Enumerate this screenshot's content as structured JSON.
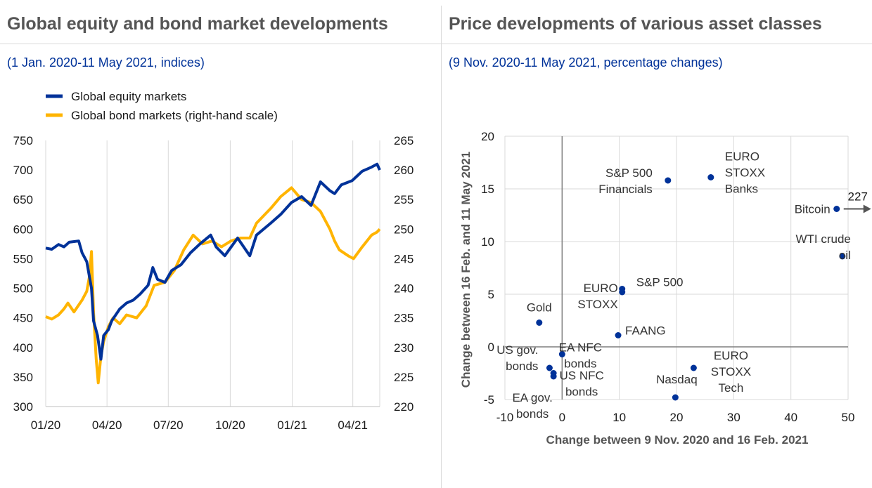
{
  "colors": {
    "equity": "#003299",
    "bond": "#FFB400",
    "grid": "#d9d9d9",
    "dot": "#003299",
    "text": "#1a1a1a",
    "title": "#555555",
    "subtitle": "#003299"
  },
  "left": {
    "title": "Global equity and bond market developments",
    "subtitle": "(1 Jan. 2020-11 May 2021, indices)"
  },
  "right": {
    "title": "Price developments of various asset classes",
    "subtitle": "(9 Nov. 2020-11 May 2021, percentage changes)"
  },
  "chart_data": [
    {
      "type": "line",
      "x_range": [
        "2020-01-01",
        "2021-05-11"
      ],
      "x_ticks": [
        {
          "date": "2020-01-01",
          "label": "01/20"
        },
        {
          "date": "2020-04-01",
          "label": "04/20"
        },
        {
          "date": "2020-07-01",
          "label": "07/20"
        },
        {
          "date": "2020-10-01",
          "label": "10/20"
        },
        {
          "date": "2021-01-01",
          "label": "01/21"
        },
        {
          "date": "2021-04-01",
          "label": "04/21"
        }
      ],
      "ylim_left": [
        300,
        750
      ],
      "yticks_left": [
        "750",
        "700",
        "650",
        "600",
        "550",
        "500",
        "450",
        "400",
        "350",
        "300"
      ],
      "ylim_right": [
        220,
        265
      ],
      "yticks_right": [
        "265",
        "260",
        "255",
        "250",
        "245",
        "240",
        "235",
        "230",
        "225",
        "220"
      ],
      "grid": "vertical at x ticks",
      "legend_placement": "top-left",
      "series": [
        {
          "name": "Global equity markets",
          "axis": "left",
          "color": "#003299",
          "points": [
            [
              "2020-01-01",
              568
            ],
            [
              "2020-01-10",
              566
            ],
            [
              "2020-01-20",
              574
            ],
            [
              "2020-01-28",
              570
            ],
            [
              "2020-02-05",
              578
            ],
            [
              "2020-02-19",
              580
            ],
            [
              "2020-02-24",
              560
            ],
            [
              "2020-03-02",
              545
            ],
            [
              "2020-03-09",
              500
            ],
            [
              "2020-03-12",
              445
            ],
            [
              "2020-03-18",
              420
            ],
            [
              "2020-03-23",
              380
            ],
            [
              "2020-03-27",
              420
            ],
            [
              "2020-04-03",
              430
            ],
            [
              "2020-04-08",
              445
            ],
            [
              "2020-04-20",
              465
            ],
            [
              "2020-04-30",
              475
            ],
            [
              "2020-05-10",
              480
            ],
            [
              "2020-05-20",
              490
            ],
            [
              "2020-06-01",
              505
            ],
            [
              "2020-06-08",
              535
            ],
            [
              "2020-06-15",
              515
            ],
            [
              "2020-06-26",
              510
            ],
            [
              "2020-07-06",
              530
            ],
            [
              "2020-07-20",
              540
            ],
            [
              "2020-08-03",
              560
            ],
            [
              "2020-08-17",
              575
            ],
            [
              "2020-09-02",
              590
            ],
            [
              "2020-09-10",
              570
            ],
            [
              "2020-09-23",
              555
            ],
            [
              "2020-10-12",
              585
            ],
            [
              "2020-10-30",
              555
            ],
            [
              "2020-11-09",
              590
            ],
            [
              "2020-11-30",
              610
            ],
            [
              "2020-12-15",
              625
            ],
            [
              "2020-12-31",
              645
            ],
            [
              "2021-01-15",
              655
            ],
            [
              "2021-01-29",
              640
            ],
            [
              "2021-02-12",
              680
            ],
            [
              "2021-02-26",
              665
            ],
            [
              "2021-03-05",
              660
            ],
            [
              "2021-03-15",
              675
            ],
            [
              "2021-03-31",
              682
            ],
            [
              "2021-04-15",
              698
            ],
            [
              "2021-04-29",
              705
            ],
            [
              "2021-05-07",
              710
            ],
            [
              "2021-05-11",
              700
            ]
          ]
        },
        {
          "name": "Global bond markets (right-hand scale)",
          "axis": "right",
          "color": "#FFB400",
          "points": [
            [
              "2020-01-01",
              235.2
            ],
            [
              "2020-01-10",
              234.8
            ],
            [
              "2020-01-20",
              235.5
            ],
            [
              "2020-01-28",
              236.5
            ],
            [
              "2020-02-03",
              237.5
            ],
            [
              "2020-02-12",
              236.0
            ],
            [
              "2020-02-24",
              238.0
            ],
            [
              "2020-03-02",
              239.5
            ],
            [
              "2020-03-06",
              242.0
            ],
            [
              "2020-03-09",
              246.2
            ],
            [
              "2020-03-12",
              236.0
            ],
            [
              "2020-03-16",
              228.0
            ],
            [
              "2020-03-19",
              224.0
            ],
            [
              "2020-03-23",
              228.5
            ],
            [
              "2020-03-27",
              231.0
            ],
            [
              "2020-04-03",
              233.5
            ],
            [
              "2020-04-10",
              235.0
            ],
            [
              "2020-04-20",
              234.0
            ],
            [
              "2020-04-30",
              235.5
            ],
            [
              "2020-05-15",
              235.0
            ],
            [
              "2020-05-29",
              237.0
            ],
            [
              "2020-06-10",
              240.5
            ],
            [
              "2020-06-26",
              241.0
            ],
            [
              "2020-07-10",
              243.0
            ],
            [
              "2020-07-24",
              246.5
            ],
            [
              "2020-08-07",
              249.0
            ],
            [
              "2020-08-21",
              247.5
            ],
            [
              "2020-09-04",
              248.0
            ],
            [
              "2020-09-18",
              247.0
            ],
            [
              "2020-10-02",
              248.0
            ],
            [
              "2020-10-16",
              248.5
            ],
            [
              "2020-10-30",
              248.5
            ],
            [
              "2020-11-09",
              251.0
            ],
            [
              "2020-11-30",
              253.5
            ],
            [
              "2020-12-15",
              255.5
            ],
            [
              "2020-12-31",
              257.0
            ],
            [
              "2021-01-15",
              255.0
            ],
            [
              "2021-01-29",
              254.5
            ],
            [
              "2021-02-12",
              253.0
            ],
            [
              "2021-02-26",
              250.0
            ],
            [
              "2021-03-05",
              248.0
            ],
            [
              "2021-03-12",
              246.5
            ],
            [
              "2021-03-25",
              245.5
            ],
            [
              "2021-04-02",
              245.0
            ],
            [
              "2021-04-15",
              247.0
            ],
            [
              "2021-04-29",
              249.0
            ],
            [
              "2021-05-07",
              249.5
            ],
            [
              "2021-05-11",
              250.0
            ]
          ]
        }
      ]
    },
    {
      "type": "scatter",
      "xlabel": "Change between 9 Nov. 2020 and 16 Feb. 2021",
      "ylabel": "Change between 16 Feb. and 11 May 2021",
      "xlim": [
        -10,
        50
      ],
      "ylim": [
        -5,
        20
      ],
      "xticks": [
        -10,
        0,
        10,
        20,
        30,
        40,
        50
      ],
      "yticks": [
        20,
        15,
        10,
        5,
        0,
        -5
      ],
      "grid": "vertical and horizontal",
      "points": [
        {
          "label": "EURO\nSTOXX\nBanks",
          "x": 26,
          "y": 16.1
        },
        {
          "label": "S&P 500\nFinancials",
          "x": 18.5,
          "y": 15.8
        },
        {
          "label": "Bitcoin",
          "x": 48,
          "y": 13.1
        },
        {
          "label": "WTI crude\noil",
          "x": 49,
          "y": 8.6
        },
        {
          "label": "S&P 500",
          "x": 10.5,
          "y": 5.5
        },
        {
          "label": "EURO\nSTOXX",
          "x": 10.5,
          "y": 5.2
        },
        {
          "label": "Gold",
          "x": -4,
          "y": 2.3
        },
        {
          "label": "FAANG",
          "x": 9.8,
          "y": 1.1
        },
        {
          "label": "EA NFC\nbonds",
          "x": 0,
          "y": -0.7
        },
        {
          "label": "US gov.\nbonds",
          "x": -2.2,
          "y": -2
        },
        {
          "label": "EURO\nSTOXX\nTech",
          "x": 23,
          "y": -2
        },
        {
          "label": "US NFC\nbonds",
          "x": -1.5,
          "y": -2.5
        },
        {
          "label": "EA gov.\nbonds",
          "x": -1.5,
          "y": -2.8
        },
        {
          "label": "Nasdaq",
          "x": 19.8,
          "y": -4.8
        }
      ],
      "annotation": {
        "text": "227",
        "target": "Bitcoin",
        "arrow": "right"
      }
    }
  ]
}
